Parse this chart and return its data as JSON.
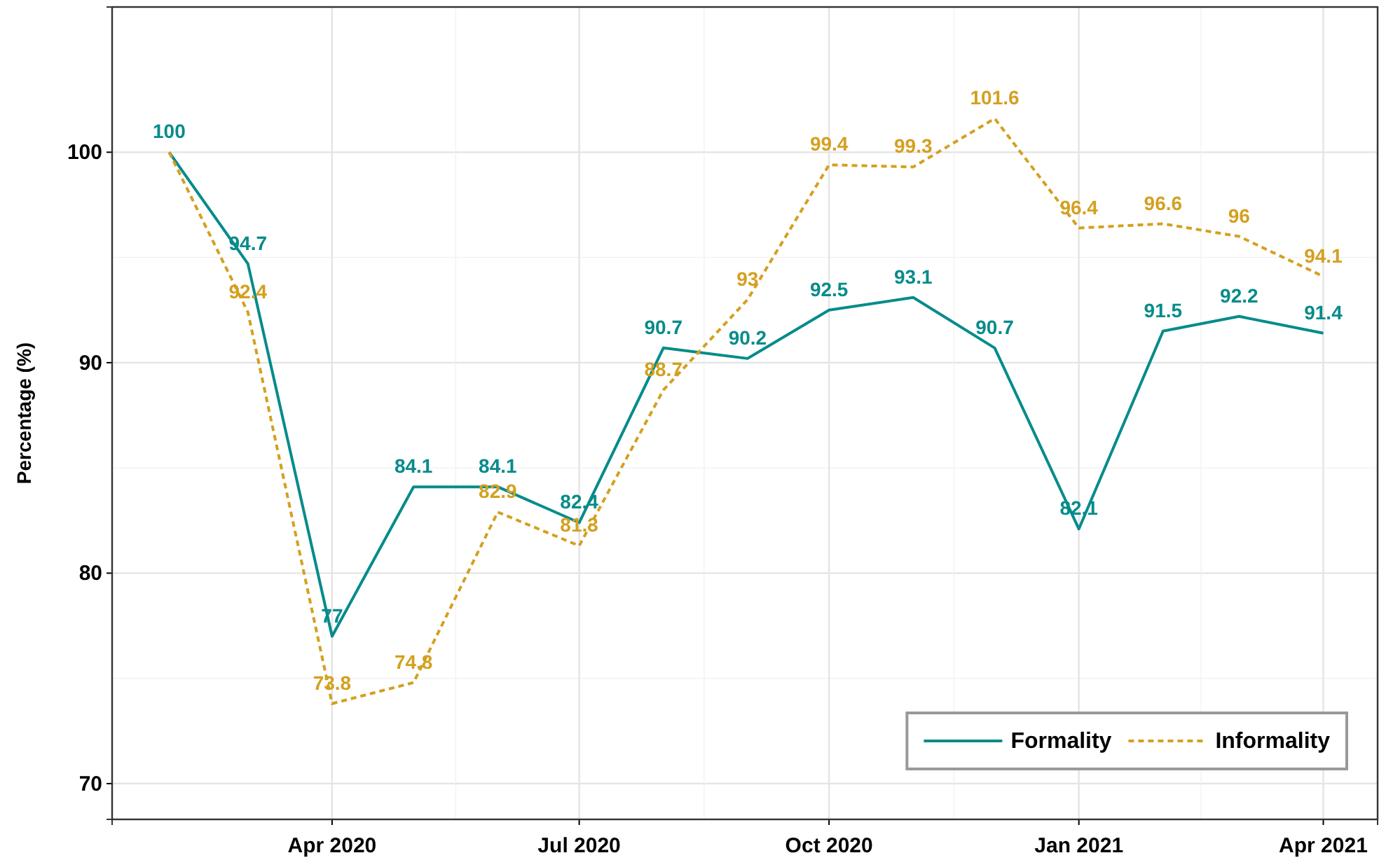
{
  "chart_data": {
    "type": "line",
    "ylabel": "Percentage (%)",
    "x": [
      "2020-02-01",
      "2020-03-01",
      "2020-04-01",
      "2020-05-01",
      "2020-06-01",
      "2020-07-01",
      "2020-08-01",
      "2020-09-01",
      "2020-10-01",
      "2020-11-01",
      "2020-12-01",
      "2021-01-01",
      "2021-02-01",
      "2021-03-01",
      "2021-04-01"
    ],
    "series": [
      {
        "name": "Formality",
        "color": "#078b8b",
        "line_style": "solid",
        "values": [
          100,
          94.7,
          77,
          84.1,
          84.1,
          82.4,
          90.7,
          90.2,
          92.5,
          93.1,
          90.7,
          82.1,
          91.5,
          92.2,
          91.4
        ]
      },
      {
        "name": "Informality",
        "color": "#d4a020",
        "line_style": "dashed",
        "values": [
          100,
          92.4,
          73.8,
          74.8,
          82.9,
          81.3,
          88.7,
          93,
          99.4,
          99.3,
          101.6,
          96.4,
          96.6,
          96,
          94.1
        ],
        "value_labels": [
          null,
          "92.4",
          "73.8",
          "74.8",
          "82.9",
          "81.3",
          "88.7",
          "93",
          "99.4",
          "99.3",
          "101.6",
          "96.4",
          "96.6",
          "96",
          "94.1"
        ]
      }
    ],
    "xlim": [
      "2020-01-11",
      "2021-04-21"
    ],
    "xticks": [
      {
        "value": "2020-04-01",
        "label": "Apr 2020"
      },
      {
        "value": "2020-07-01",
        "label": "Jul 2020"
      },
      {
        "value": "2020-10-01",
        "label": "Oct 2020"
      },
      {
        "value": "2021-01-01",
        "label": "Jan 2021"
      },
      {
        "value": "2021-04-01",
        "label": "Apr 2021"
      }
    ],
    "ylim": [
      68.3,
      106.9
    ],
    "yticks": [
      70,
      80,
      90,
      100
    ],
    "grid": true,
    "legend": "bottom right",
    "data_labels": true
  }
}
